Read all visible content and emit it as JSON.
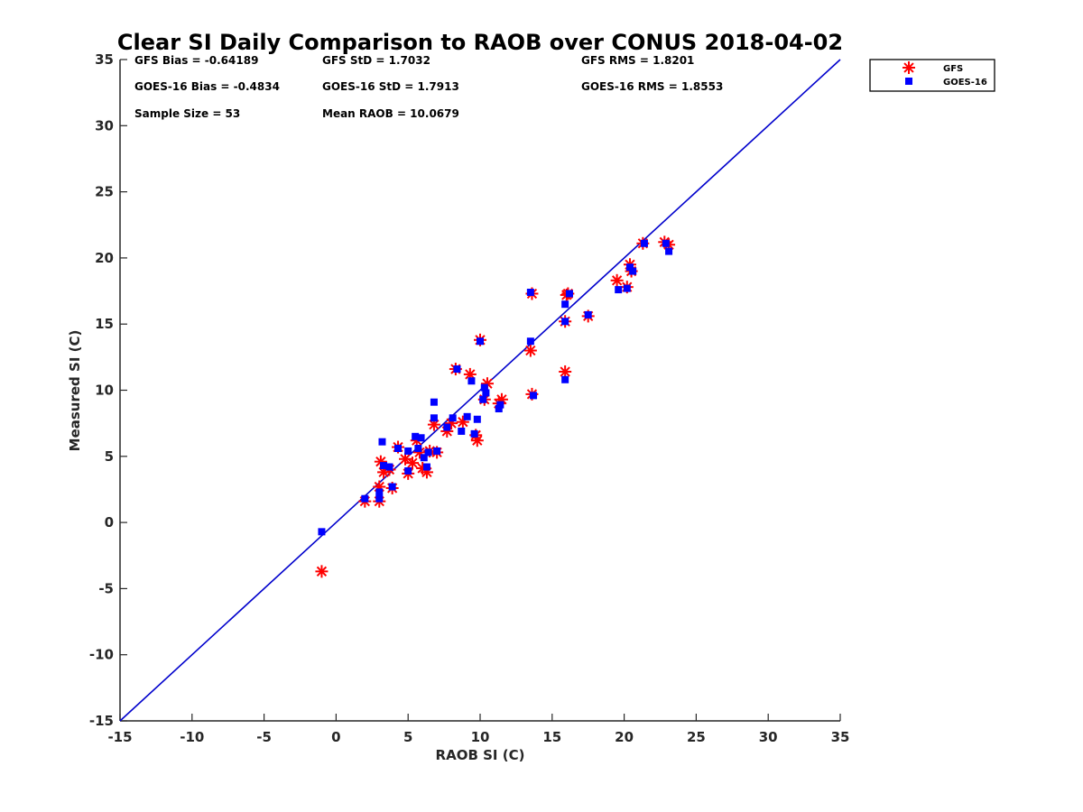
{
  "chart_data": {
    "type": "scatter",
    "title": "Clear SI Daily Comparison to RAOB over CONUS 2018-04-02",
    "xlabel": "RAOB SI (C)",
    "ylabel": "Measured SI (C)",
    "xlim": [
      -15,
      35
    ],
    "ylim": [
      -15,
      35
    ],
    "xticks": [
      -15,
      -10,
      -5,
      0,
      5,
      10,
      15,
      20,
      25,
      30,
      35
    ],
    "yticks": [
      -15,
      -10,
      -5,
      0,
      5,
      10,
      15,
      20,
      25,
      30,
      35
    ],
    "grid": false,
    "legend_position": "top-right, outside plot",
    "reference_line": {
      "from": [
        -15,
        -15
      ],
      "to": [
        35,
        35
      ],
      "color": "#0000cc"
    },
    "stats": [
      [
        "GFS Bias = -0.64189",
        "GFS StD = 1.7032",
        "GFS RMS = 1.8201"
      ],
      [
        "GOES-16 Bias = -0.4834",
        "GOES-16 StD = 1.7913",
        "GOES-16 RMS = 1.8553"
      ],
      [
        "Sample Size = 53",
        "Mean RAOB = 10.0679",
        ""
      ]
    ],
    "series": [
      {
        "name": "GFS",
        "marker": "asterisk",
        "color": "#ff0000",
        "points": [
          [
            -1,
            -3.7
          ],
          [
            2,
            1.6
          ],
          [
            3,
            1.6
          ],
          [
            3,
            2.7
          ],
          [
            3.1,
            4.6
          ],
          [
            3.3,
            3.8
          ],
          [
            3.7,
            4
          ],
          [
            3.9,
            2.6
          ],
          [
            4.3,
            5.7
          ],
          [
            4.8,
            4.8
          ],
          [
            5,
            3.7
          ],
          [
            5.3,
            4.5
          ],
          [
            5.6,
            6.2
          ],
          [
            5.8,
            5.3
          ],
          [
            6,
            4.1
          ],
          [
            6.3,
            3.8
          ],
          [
            6.5,
            5.4
          ],
          [
            6.8,
            7.4
          ],
          [
            7,
            5.3
          ],
          [
            7.7,
            6.9
          ],
          [
            8,
            7.5
          ],
          [
            8.3,
            11.6
          ],
          [
            8.8,
            7.6
          ],
          [
            9.3,
            11.2
          ],
          [
            9.7,
            6.6
          ],
          [
            9.8,
            6.2
          ],
          [
            10,
            13.8
          ],
          [
            10.3,
            9.3
          ],
          [
            10.5,
            10.5
          ],
          [
            11.3,
            9
          ],
          [
            11.5,
            9.3
          ],
          [
            13.5,
            13
          ],
          [
            13.6,
            17.3
          ],
          [
            13.6,
            9.7
          ],
          [
            15.9,
            11.4
          ],
          [
            15.9,
            15.2
          ],
          [
            16,
            17.2
          ],
          [
            16.1,
            17.3
          ],
          [
            17.5,
            15.6
          ],
          [
            19.5,
            18.3
          ],
          [
            20.2,
            17.8
          ],
          [
            20.4,
            19.5
          ],
          [
            20.5,
            19
          ],
          [
            21.3,
            21.1
          ],
          [
            22.8,
            21.2
          ],
          [
            23.1,
            21
          ]
        ]
      },
      {
        "name": "GOES-16",
        "marker": "square",
        "color": "#0000ff",
        "points": [
          [
            -1,
            -0.7
          ],
          [
            2,
            1.8
          ],
          [
            3,
            1.8
          ],
          [
            3,
            2.3
          ],
          [
            3.2,
            6.1
          ],
          [
            3.3,
            4.3
          ],
          [
            3.7,
            4.2
          ],
          [
            3.9,
            2.7
          ],
          [
            4.3,
            5.6
          ],
          [
            5,
            3.9
          ],
          [
            5,
            5.4
          ],
          [
            5.5,
            6.5
          ],
          [
            5.7,
            5.6
          ],
          [
            5.9,
            6.4
          ],
          [
            6.1,
            4.9
          ],
          [
            6.3,
            4.2
          ],
          [
            6.4,
            5.3
          ],
          [
            6.8,
            9.1
          ],
          [
            6.8,
            7.9
          ],
          [
            7,
            5.4
          ],
          [
            7.7,
            7.2
          ],
          [
            8.1,
            7.9
          ],
          [
            8.4,
            11.6
          ],
          [
            8.7,
            6.9
          ],
          [
            9.1,
            8
          ],
          [
            9.4,
            10.7
          ],
          [
            9.6,
            6.7
          ],
          [
            9.8,
            7.8
          ],
          [
            10,
            13.7
          ],
          [
            10.2,
            9.3
          ],
          [
            10.3,
            10.2
          ],
          [
            10.4,
            9.8
          ],
          [
            11.3,
            8.6
          ],
          [
            11.4,
            8.9
          ],
          [
            13.5,
            13.7
          ],
          [
            13.5,
            17.4
          ],
          [
            13.7,
            9.6
          ],
          [
            15.9,
            10.8
          ],
          [
            15.9,
            15.2
          ],
          [
            15.9,
            16.5
          ],
          [
            16.2,
            17.3
          ],
          [
            17.5,
            15.7
          ],
          [
            19.6,
            17.6
          ],
          [
            20.2,
            17.7
          ],
          [
            20.4,
            19.3
          ],
          [
            20.6,
            19
          ],
          [
            21.4,
            21.1
          ],
          [
            22.9,
            21.1
          ],
          [
            23.1,
            20.5
          ]
        ]
      }
    ]
  }
}
